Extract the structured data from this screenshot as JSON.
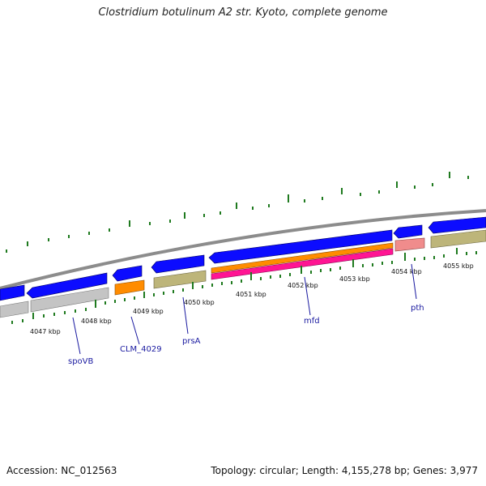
{
  "title": "Clostridium botulinum A2 str. Kyoto, complete genome",
  "footer": {
    "accession": "Accession: NC_012563",
    "info": "Topology: circular; Length: 4,155,278 bp; Genes: 3,977"
  },
  "colors": {
    "backbone": "#8a8a8a",
    "cds_forward": "#0c0cff",
    "gray_feature": "#c4c4c4",
    "orange_feature": "#ff8c00",
    "olive_feature": "#bdb57a",
    "pink_feature": "#f08c8c",
    "magenta_feature": "#ff1493",
    "tick": "#1f7a1f",
    "label": "#1a1aa0"
  },
  "kbp_labels": [
    "4047 kbp",
    "4048 kbp",
    "4049 kbp",
    "4050 kbp",
    "4051 kbp",
    "4052 kbp",
    "4053 kbp",
    "4054 kbp",
    "4055 kbp"
  ],
  "gene_labels": [
    "spoVB",
    "CLM_4029",
    "prsA",
    "mfd",
    "pth"
  ]
}
